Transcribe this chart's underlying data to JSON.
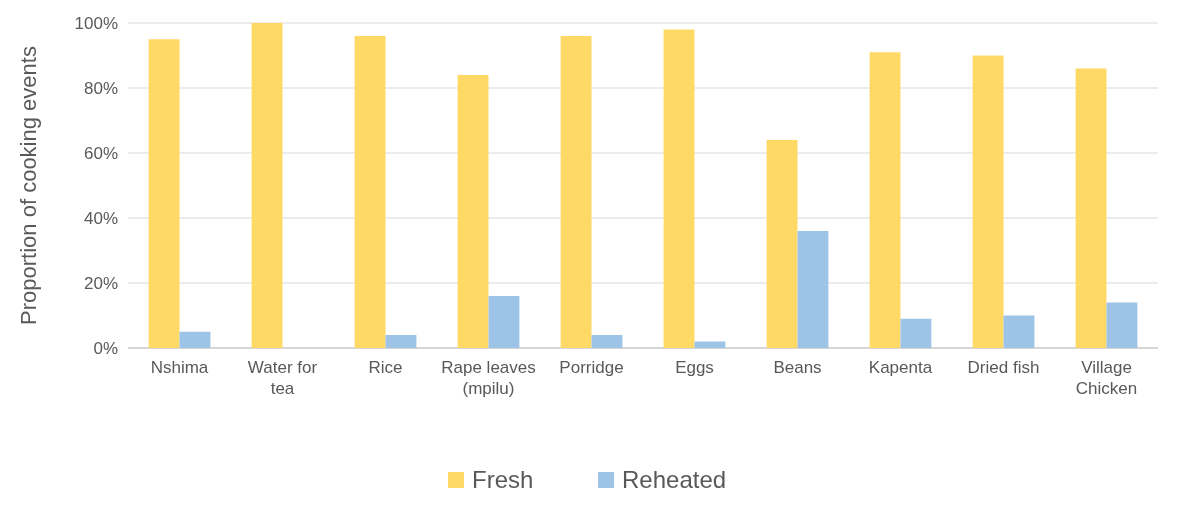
{
  "chart_data": {
    "type": "bar",
    "ylabel": "Proportion of cooking events",
    "categories": [
      "Nshima",
      "Water for tea",
      "Rice",
      "Rape leaves (mpilu)",
      "Porridge",
      "Eggs",
      "Beans",
      "Kapenta",
      "Dried fish",
      "Village Chicken"
    ],
    "series": [
      {
        "name": "Fresh",
        "color": "#ffd966",
        "values": [
          95,
          100,
          96,
          84,
          96,
          98,
          64,
          91,
          90,
          86
        ]
      },
      {
        "name": "Reheated",
        "color": "#9dc3e6",
        "values": [
          5,
          0,
          4,
          16,
          4,
          2,
          36,
          9,
          10,
          14
        ]
      }
    ],
    "ylim": [
      0,
      100
    ],
    "yticks": [
      {
        "value": 0,
        "label": "0%"
      },
      {
        "value": 20,
        "label": "20%"
      },
      {
        "value": 40,
        "label": "40%"
      },
      {
        "value": 60,
        "label": "60%"
      },
      {
        "value": 80,
        "label": "80%"
      },
      {
        "value": 100,
        "label": "100%"
      }
    ],
    "grid": "y",
    "legend": "bottom"
  }
}
